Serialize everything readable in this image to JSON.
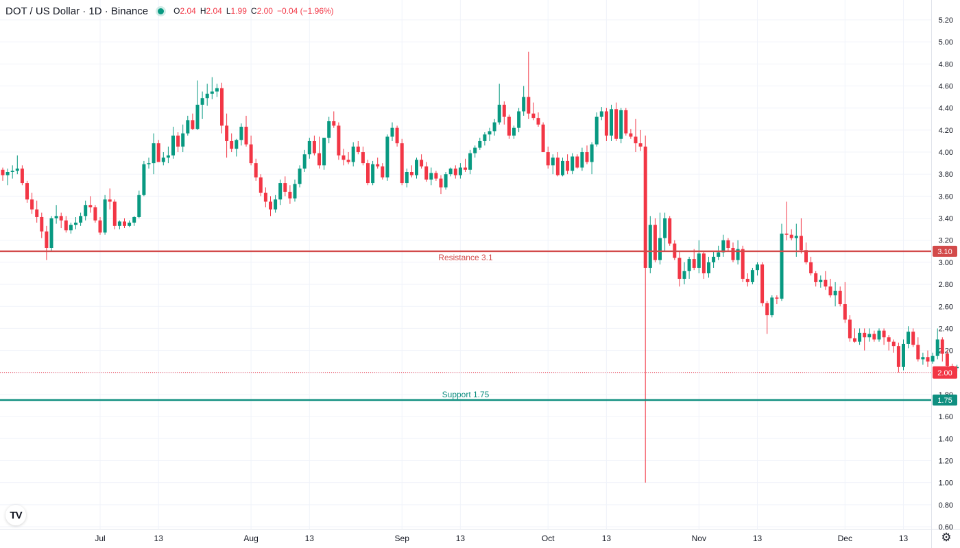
{
  "legend": {
    "symbol": "DOT / US Dollar · 1D · Binance",
    "o_label": "O",
    "o_value": "2.04",
    "h_label": "H",
    "h_value": "2.04",
    "l_label": "L",
    "l_value": "1.99",
    "c_label": "C",
    "c_value": "2.00",
    "change": "−0.04 (−1.96%)"
  },
  "logo_text": "TV",
  "colors": {
    "up": "#089981",
    "down": "#f23645",
    "resistance": "#d24a4a",
    "support": "#0f8f80",
    "grid": "#f0f3fa",
    "text": "#131722"
  },
  "chart_data": {
    "type": "candlestick",
    "ylim": [
      0.6,
      5.2
    ],
    "y_ticks": [
      "5.20",
      "5.00",
      "4.80",
      "4.60",
      "4.40",
      "4.20",
      "4.00",
      "3.80",
      "3.60",
      "3.40",
      "3.20",
      "3.00",
      "2.80",
      "2.60",
      "2.40",
      "2.20",
      "2.00",
      "1.80",
      "1.60",
      "1.40",
      "1.20",
      "1.00",
      "0.80",
      "0.60"
    ],
    "x_ticks": [
      {
        "label": "Jul",
        "index": 20
      },
      {
        "label": "13",
        "index": 32
      },
      {
        "label": "Aug",
        "index": 51
      },
      {
        "label": "13",
        "index": 63
      },
      {
        "label": "Sep",
        "index": 82
      },
      {
        "label": "13",
        "index": 94
      },
      {
        "label": "Oct",
        "index": 112
      },
      {
        "label": "13",
        "index": 124
      },
      {
        "label": "Nov",
        "index": 143
      },
      {
        "label": "13",
        "index": 155
      },
      {
        "label": "Dec",
        "index": 173
      },
      {
        "label": "13",
        "index": 185
      }
    ],
    "levels": [
      {
        "name": "resistance",
        "value": 3.1,
        "label": "Resistance 3.1",
        "badge": "3.10"
      },
      {
        "name": "support",
        "value": 1.75,
        "label": "Support 1.75",
        "badge": "1.75"
      }
    ],
    "last_price": {
      "value": 2.0,
      "badge": "2.00"
    },
    "candles": [
      [
        3.84,
        3.86,
        3.74,
        3.79
      ],
      [
        3.79,
        3.85,
        3.7,
        3.82
      ],
      [
        3.82,
        3.88,
        3.76,
        3.83
      ],
      [
        3.83,
        3.97,
        3.8,
        3.85
      ],
      [
        3.85,
        3.88,
        3.7,
        3.72
      ],
      [
        3.72,
        3.74,
        3.54,
        3.57
      ],
      [
        3.57,
        3.63,
        3.44,
        3.48
      ],
      [
        3.48,
        3.56,
        3.36,
        3.41
      ],
      [
        3.41,
        3.45,
        3.22,
        3.28
      ],
      [
        3.28,
        3.33,
        3.02,
        3.13
      ],
      [
        3.13,
        3.42,
        3.1,
        3.4
      ],
      [
        3.4,
        3.52,
        3.35,
        3.42
      ],
      [
        3.42,
        3.45,
        3.31,
        3.38
      ],
      [
        3.38,
        3.42,
        3.27,
        3.29
      ],
      [
        3.29,
        3.36,
        3.26,
        3.34
      ],
      [
        3.34,
        3.41,
        3.3,
        3.36
      ],
      [
        3.36,
        3.45,
        3.33,
        3.42
      ],
      [
        3.42,
        3.56,
        3.38,
        3.52
      ],
      [
        3.52,
        3.6,
        3.45,
        3.5
      ],
      [
        3.5,
        3.52,
        3.36,
        3.38
      ],
      [
        3.38,
        3.41,
        3.25,
        3.27
      ],
      [
        3.27,
        3.61,
        3.25,
        3.57
      ],
      [
        3.57,
        3.67,
        3.48,
        3.55
      ],
      [
        3.55,
        3.57,
        3.3,
        3.33
      ],
      [
        3.33,
        3.38,
        3.3,
        3.37
      ],
      [
        3.37,
        3.4,
        3.31,
        3.33
      ],
      [
        3.33,
        3.38,
        3.32,
        3.36
      ],
      [
        3.36,
        3.42,
        3.33,
        3.41
      ],
      [
        3.41,
        3.65,
        3.4,
        3.61
      ],
      [
        3.61,
        3.92,
        3.6,
        3.89
      ],
      [
        3.89,
        3.95,
        3.85,
        3.9
      ],
      [
        3.9,
        4.17,
        3.8,
        4.08
      ],
      [
        4.08,
        4.11,
        3.95,
        3.91
      ],
      [
        3.91,
        4.0,
        3.88,
        3.95
      ],
      [
        3.95,
        4.05,
        3.9,
        3.97
      ],
      [
        3.97,
        4.23,
        3.94,
        4.15
      ],
      [
        4.15,
        4.18,
        4.0,
        4.05
      ],
      [
        4.05,
        4.25,
        4.0,
        4.17
      ],
      [
        4.17,
        4.33,
        4.15,
        4.29
      ],
      [
        4.29,
        4.35,
        4.2,
        4.21
      ],
      [
        4.21,
        4.65,
        4.2,
        4.43
      ],
      [
        4.43,
        4.55,
        4.3,
        4.49
      ],
      [
        4.49,
        4.62,
        4.42,
        4.53
      ],
      [
        4.53,
        4.68,
        4.48,
        4.55
      ],
      [
        4.55,
        4.62,
        4.5,
        4.58
      ],
      [
        4.58,
        4.63,
        4.17,
        4.24
      ],
      [
        4.24,
        4.35,
        3.95,
        4.1
      ],
      [
        4.1,
        4.17,
        4.0,
        4.03
      ],
      [
        4.03,
        4.12,
        3.96,
        4.11
      ],
      [
        4.11,
        4.26,
        4.06,
        4.23
      ],
      [
        4.23,
        4.33,
        4.05,
        4.07
      ],
      [
        4.07,
        4.15,
        3.88,
        3.9
      ],
      [
        3.9,
        3.94,
        3.74,
        3.77
      ],
      [
        3.77,
        3.8,
        3.6,
        3.63
      ],
      [
        3.63,
        3.68,
        3.5,
        3.55
      ],
      [
        3.55,
        3.6,
        3.42,
        3.48
      ],
      [
        3.48,
        3.61,
        3.45,
        3.57
      ],
      [
        3.57,
        3.75,
        3.52,
        3.72
      ],
      [
        3.72,
        3.78,
        3.6,
        3.64
      ],
      [
        3.64,
        3.7,
        3.53,
        3.58
      ],
      [
        3.58,
        3.75,
        3.55,
        3.71
      ],
      [
        3.71,
        3.88,
        3.68,
        3.85
      ],
      [
        3.85,
        4.02,
        3.82,
        3.98
      ],
      [
        3.98,
        4.13,
        3.94,
        4.1
      ],
      [
        4.1,
        4.15,
        3.97,
        3.99
      ],
      [
        3.99,
        4.14,
        3.85,
        3.88
      ],
      [
        3.88,
        4.1,
        3.84,
        4.13
      ],
      [
        4.13,
        4.32,
        4.08,
        4.28
      ],
      [
        4.28,
        4.37,
        4.22,
        4.24
      ],
      [
        4.24,
        4.27,
        3.93,
        3.97
      ],
      [
        3.97,
        4.03,
        3.88,
        3.93
      ],
      [
        3.93,
        4.0,
        3.89,
        3.91
      ],
      [
        3.91,
        4.09,
        3.87,
        4.05
      ],
      [
        4.05,
        4.1,
        3.98,
        4.0
      ],
      [
        4.0,
        4.05,
        3.88,
        3.9
      ],
      [
        3.9,
        3.93,
        3.7,
        3.72
      ],
      [
        3.72,
        3.92,
        3.7,
        3.89
      ],
      [
        3.89,
        3.95,
        3.85,
        3.87
      ],
      [
        3.87,
        3.9,
        3.75,
        3.77
      ],
      [
        3.77,
        4.16,
        3.74,
        4.14
      ],
      [
        4.14,
        4.27,
        4.1,
        4.22
      ],
      [
        4.22,
        4.24,
        4.05,
        4.08
      ],
      [
        4.08,
        4.12,
        3.7,
        3.72
      ],
      [
        3.72,
        3.85,
        3.68,
        3.82
      ],
      [
        3.82,
        3.88,
        3.77,
        3.79
      ],
      [
        3.79,
        3.95,
        3.76,
        3.93
      ],
      [
        3.93,
        3.98,
        3.85,
        3.87
      ],
      [
        3.87,
        3.91,
        3.73,
        3.75
      ],
      [
        3.75,
        3.86,
        3.7,
        3.81
      ],
      [
        3.81,
        3.83,
        3.74,
        3.76
      ],
      [
        3.76,
        3.79,
        3.62,
        3.68
      ],
      [
        3.68,
        3.82,
        3.66,
        3.8
      ],
      [
        3.8,
        3.86,
        3.78,
        3.85
      ],
      [
        3.85,
        3.88,
        3.76,
        3.79
      ],
      [
        3.79,
        3.9,
        3.76,
        3.86
      ],
      [
        3.86,
        3.94,
        3.82,
        3.84
      ],
      [
        3.84,
        4.02,
        3.8,
        3.99
      ],
      [
        3.99,
        4.06,
        3.95,
        4.04
      ],
      [
        4.04,
        4.13,
        4.02,
        4.1
      ],
      [
        4.1,
        4.18,
        4.06,
        4.16
      ],
      [
        4.16,
        4.22,
        4.1,
        4.19
      ],
      [
        4.19,
        4.3,
        4.15,
        4.27
      ],
      [
        4.27,
        4.62,
        4.25,
        4.43
      ],
      [
        4.43,
        4.46,
        4.25,
        4.32
      ],
      [
        4.32,
        4.34,
        4.12,
        4.15
      ],
      [
        4.15,
        4.24,
        4.12,
        4.22
      ],
      [
        4.22,
        4.4,
        4.18,
        4.37
      ],
      [
        4.37,
        4.6,
        4.33,
        4.5
      ],
      [
        4.5,
        4.91,
        4.3,
        4.35
      ],
      [
        4.35,
        4.45,
        4.29,
        4.31
      ],
      [
        4.31,
        4.36,
        4.23,
        4.25
      ],
      [
        4.25,
        4.27,
        4.0,
        4.0
      ],
      [
        4.0,
        4.05,
        3.85,
        3.88
      ],
      [
        3.88,
        3.98,
        3.8,
        3.95
      ],
      [
        3.95,
        4.0,
        3.78,
        3.79
      ],
      [
        3.79,
        3.95,
        3.78,
        3.92
      ],
      [
        3.92,
        3.98,
        3.8,
        3.83
      ],
      [
        3.83,
        3.99,
        3.8,
        3.96
      ],
      [
        3.96,
        3.98,
        3.85,
        3.86
      ],
      [
        3.86,
        4.04,
        3.83,
        4.0
      ],
      [
        4.0,
        4.06,
        3.89,
        3.91
      ],
      [
        3.91,
        4.09,
        3.8,
        4.07
      ],
      [
        4.07,
        4.36,
        4.05,
        4.32
      ],
      [
        4.32,
        4.41,
        4.29,
        4.37
      ],
      [
        4.37,
        4.4,
        4.1,
        4.15
      ],
      [
        4.15,
        4.43,
        4.1,
        4.39
      ],
      [
        4.39,
        4.45,
        4.1,
        4.12
      ],
      [
        4.12,
        4.4,
        4.08,
        4.38
      ],
      [
        4.38,
        4.4,
        4.15,
        4.17
      ],
      [
        4.17,
        4.21,
        4.12,
        4.14
      ],
      [
        4.14,
        4.3,
        4.0,
        4.08
      ],
      [
        4.08,
        4.2,
        4.01,
        4.05
      ],
      [
        4.05,
        4.15,
        1.0,
        2.95
      ],
      [
        2.95,
        3.42,
        2.9,
        3.34
      ],
      [
        3.34,
        3.4,
        3.0,
        3.02
      ],
      [
        3.02,
        3.45,
        2.98,
        3.22
      ],
      [
        3.22,
        3.45,
        3.1,
        3.4
      ],
      [
        3.4,
        3.42,
        3.15,
        3.17
      ],
      [
        3.17,
        3.2,
        3.02,
        3.04
      ],
      [
        3.04,
        3.1,
        2.78,
        2.85
      ],
      [
        2.85,
        3.0,
        2.8,
        2.92
      ],
      [
        2.92,
        3.05,
        2.85,
        3.03
      ],
      [
        3.03,
        3.12,
        2.93,
        2.95
      ],
      [
        2.95,
        3.2,
        2.9,
        3.08
      ],
      [
        3.08,
        3.1,
        2.85,
        2.9
      ],
      [
        2.9,
        3.05,
        2.86,
        3.0
      ],
      [
        3.0,
        3.1,
        2.95,
        3.05
      ],
      [
        3.05,
        3.15,
        3.02,
        3.09
      ],
      [
        3.09,
        3.25,
        3.05,
        3.2
      ],
      [
        3.2,
        3.22,
        3.1,
        3.13
      ],
      [
        3.13,
        3.18,
        3.0,
        3.02
      ],
      [
        3.02,
        3.2,
        2.98,
        3.12
      ],
      [
        3.12,
        3.15,
        2.82,
        2.85
      ],
      [
        2.85,
        2.9,
        2.78,
        2.82
      ],
      [
        2.82,
        2.95,
        2.8,
        2.93
      ],
      [
        2.93,
        3.0,
        2.88,
        2.98
      ],
      [
        2.98,
        3.0,
        2.6,
        2.63
      ],
      [
        2.63,
        2.65,
        2.35,
        2.52
      ],
      [
        2.52,
        2.7,
        2.5,
        2.68
      ],
      [
        2.68,
        2.7,
        2.62,
        2.67
      ],
      [
        2.67,
        3.35,
        2.65,
        3.26
      ],
      [
        3.26,
        3.55,
        3.2,
        3.25
      ],
      [
        3.25,
        3.3,
        3.2,
        3.22
      ],
      [
        3.22,
        3.35,
        3.05,
        3.24
      ],
      [
        3.24,
        3.4,
        3.08,
        3.11
      ],
      [
        3.11,
        3.18,
        2.98,
        3.0
      ],
      [
        3.0,
        3.05,
        2.88,
        2.9
      ],
      [
        2.9,
        2.92,
        2.78,
        2.82
      ],
      [
        2.82,
        2.88,
        2.77,
        2.84
      ],
      [
        2.84,
        2.92,
        2.75,
        2.78
      ],
      [
        2.78,
        2.85,
        2.68,
        2.7
      ],
      [
        2.7,
        2.82,
        2.6,
        2.74
      ],
      [
        2.74,
        2.78,
        2.6,
        2.62
      ],
      [
        2.62,
        2.82,
        2.45,
        2.48
      ],
      [
        2.48,
        2.52,
        2.28,
        2.31
      ],
      [
        2.31,
        2.4,
        2.27,
        2.28
      ],
      [
        2.28,
        2.4,
        2.25,
        2.36
      ],
      [
        2.36,
        2.4,
        2.2,
        2.32
      ],
      [
        2.32,
        2.4,
        2.28,
        2.35
      ],
      [
        2.35,
        2.38,
        2.28,
        2.3
      ],
      [
        2.3,
        2.4,
        2.28,
        2.38
      ],
      [
        2.38,
        2.4,
        2.25,
        2.32
      ],
      [
        2.32,
        2.34,
        2.2,
        2.28
      ],
      [
        2.28,
        2.3,
        2.18,
        2.24
      ],
      [
        2.24,
        2.27,
        2.0,
        2.05
      ],
      [
        2.05,
        2.3,
        2.02,
        2.26
      ],
      [
        2.26,
        2.42,
        2.22,
        2.37
      ],
      [
        2.37,
        2.4,
        2.23,
        2.25
      ],
      [
        2.25,
        2.32,
        2.1,
        2.12
      ],
      [
        2.12,
        2.18,
        2.07,
        2.14
      ],
      [
        2.14,
        2.2,
        2.05,
        2.1
      ],
      [
        2.1,
        2.18,
        2.08,
        2.15
      ],
      [
        2.15,
        2.4,
        2.12,
        2.3
      ],
      [
        2.3,
        2.32,
        2.1,
        2.17
      ],
      [
        2.17,
        2.2,
        2.03,
        2.06
      ],
      [
        2.06,
        2.08,
        1.97,
        2.04
      ],
      [
        2.04,
        2.07,
        2.01,
        2.05
      ],
      [
        2.04,
        2.04,
        1.99,
        2.0
      ]
    ]
  }
}
